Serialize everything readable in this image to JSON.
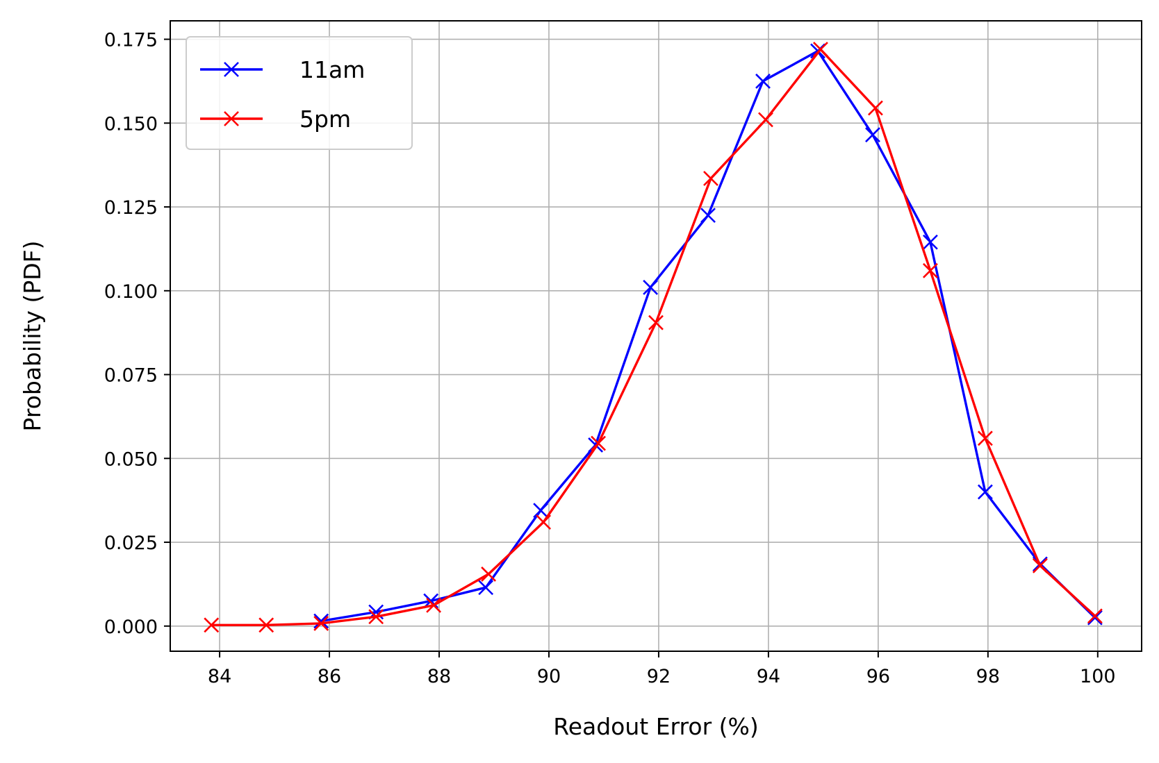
{
  "chart_data": {
    "type": "line",
    "xlabel": "Readout Error (%)",
    "ylabel": "Probability (PDF)",
    "xlim": [
      83.1,
      100.8
    ],
    "ylim": [
      -0.0075,
      0.1805
    ],
    "x_ticks": [
      84,
      86,
      88,
      90,
      92,
      94,
      96,
      98,
      100
    ],
    "x_tick_labels": [
      "84",
      "86",
      "88",
      "90",
      "92",
      "94",
      "96",
      "98",
      "100"
    ],
    "y_ticks": [
      0.0,
      0.025,
      0.05,
      0.075,
      0.1,
      0.125,
      0.15,
      0.175
    ],
    "y_tick_labels": [
      "0.000",
      "0.025",
      "0.050",
      "0.075",
      "0.100",
      "0.125",
      "0.150",
      "0.175"
    ],
    "grid": true,
    "legend_position": "top-left",
    "marker": "x",
    "series": [
      {
        "name": "11am",
        "color": "#0000ff",
        "x": [
          85.85,
          86.85,
          87.85,
          88.85,
          89.85,
          90.85,
          91.85,
          92.9,
          93.9,
          94.9,
          95.9,
          96.95,
          97.95,
          98.95,
          99.95
        ],
        "y": [
          0.0015,
          0.0042,
          0.0075,
          0.0115,
          0.0345,
          0.054,
          0.101,
          0.1225,
          0.1625,
          0.1715,
          0.1465,
          0.1145,
          0.04,
          0.0185,
          0.0025
        ]
      },
      {
        "name": "5pm",
        "color": "#ff0000",
        "x": [
          83.85,
          84.85,
          85.85,
          86.85,
          87.9,
          88.9,
          89.9,
          90.9,
          91.95,
          92.95,
          93.95,
          94.95,
          95.95,
          96.95,
          97.95,
          98.95,
          99.95
        ],
        "y": [
          0.0003,
          0.0003,
          0.0008,
          0.0028,
          0.0062,
          0.0155,
          0.031,
          0.0545,
          0.0905,
          0.1335,
          0.151,
          0.172,
          0.1545,
          0.106,
          0.056,
          0.018,
          0.003
        ]
      }
    ]
  }
}
